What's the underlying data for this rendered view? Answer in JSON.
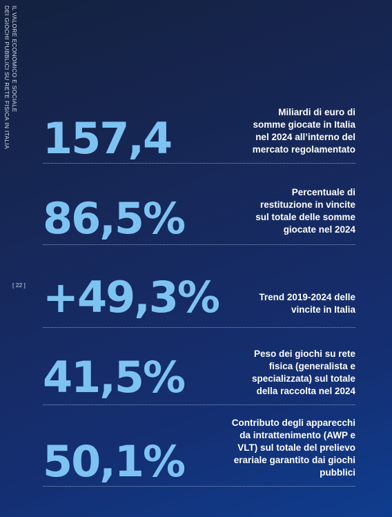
{
  "side_title": {
    "line1": "IL VALORE ECONOMICO E SOCIALE",
    "line2": "DEI GIOCHI PUBBLICI SU RETE FISICA IN ITALIA"
  },
  "page_number": "[ 22 ]",
  "stats": [
    {
      "value": "157,4",
      "description": "Miliardi di euro di\nsomme giocate in Italia\nnel 2024 all’interno del\nmercato regolamentato"
    },
    {
      "value": "86,5%",
      "description": "Percentuale di\nrestituzione in vincite\nsul totale delle somme\ngiocate nel 2024"
    },
    {
      "value": "+49,3%",
      "description": "Trend 2019-2024 delle\nvincite in Italia"
    },
    {
      "value": "41,5%",
      "description": "Peso dei giochi su rete\nfisica (generalista e\nspecializzata) sul totale\ndella raccolta nel 2024"
    },
    {
      "value": "50,1%",
      "description": "Contributo degli apparecchi\nda intrattenimento (AWP e\nVLT) sul totale del prelievo\nerariale garantito dai giochi\npubblici"
    }
  ],
  "colors": {
    "accent": "#7dc3f2",
    "text": "#ffffff"
  }
}
